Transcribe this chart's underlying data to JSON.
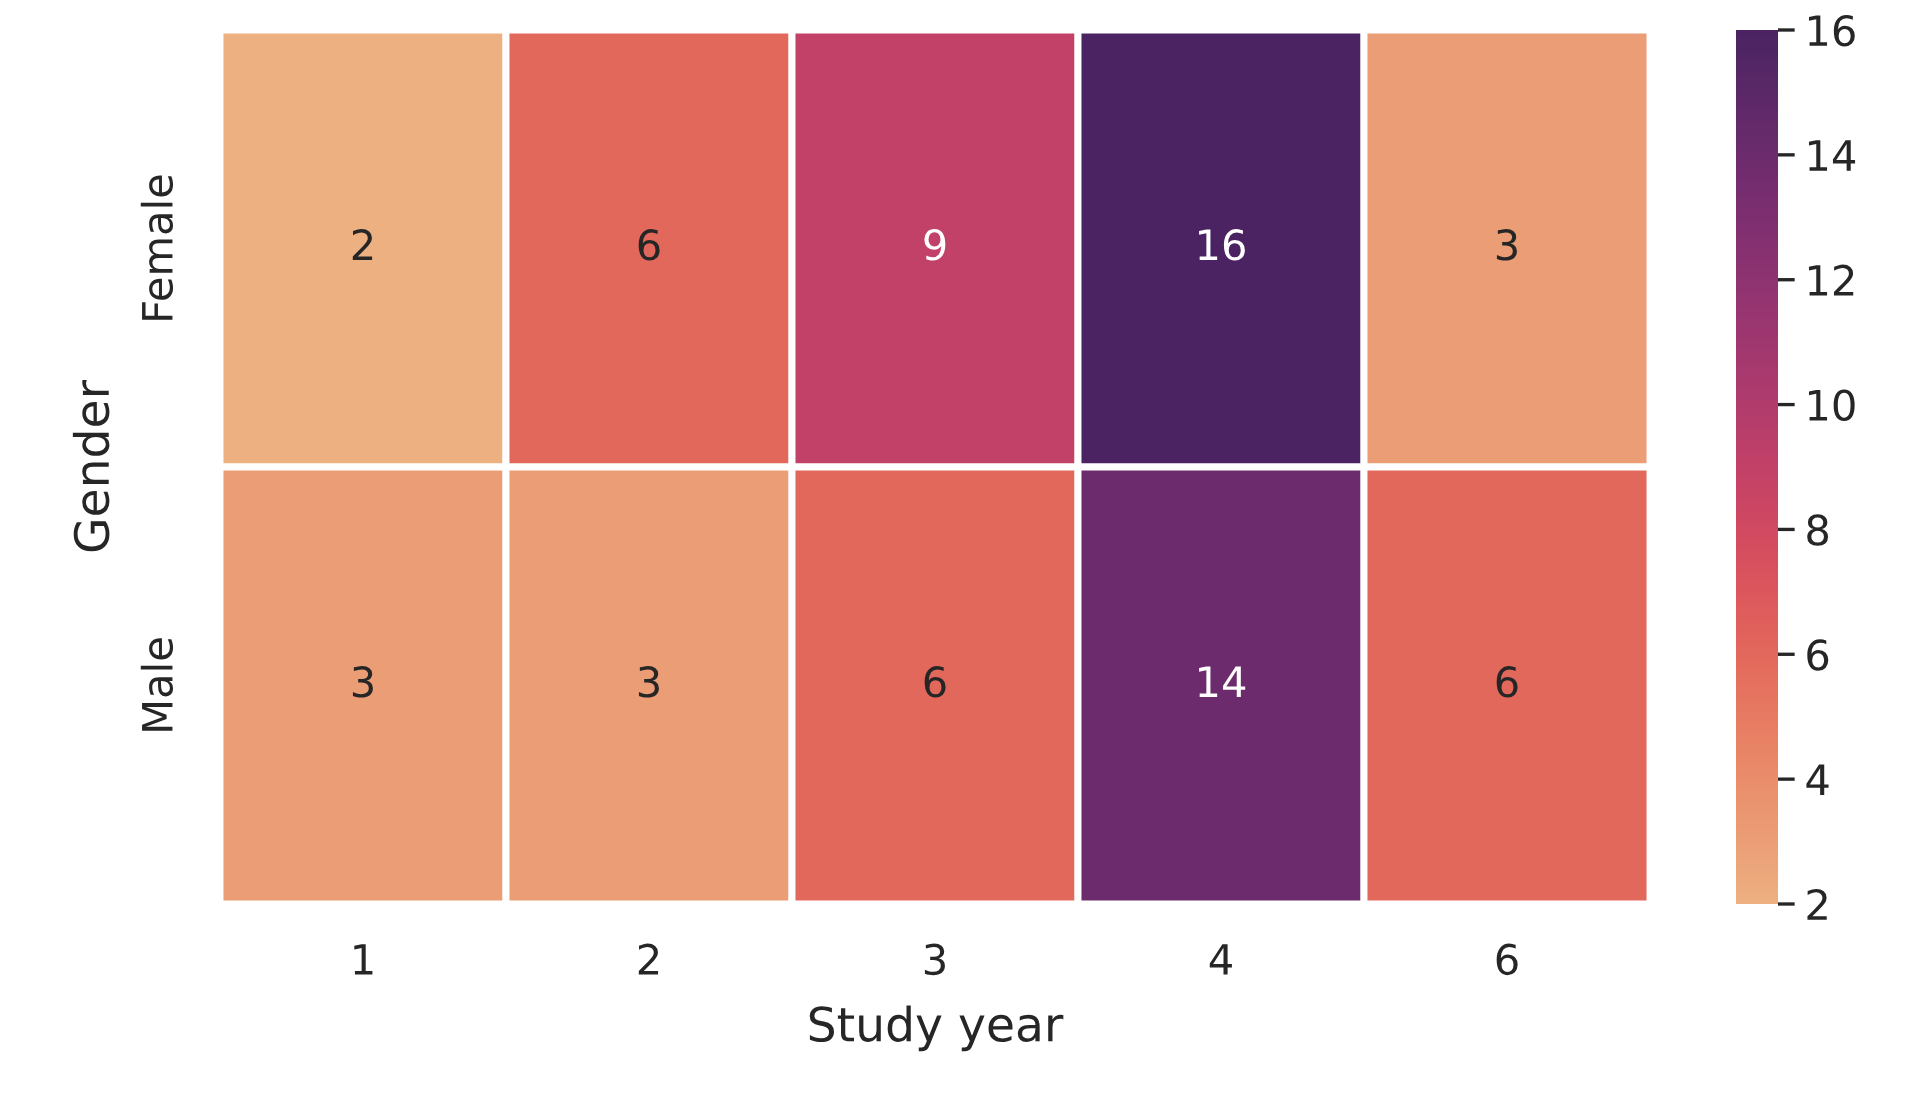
{
  "chart_data": {
    "type": "heatmap",
    "xlabel": "Study year",
    "ylabel": "Gender",
    "categories": [
      "1",
      "2",
      "3",
      "4",
      "6"
    ],
    "y_categories": [
      "Female",
      "Male"
    ],
    "cells": [
      [
        2,
        6,
        9,
        16,
        3
      ],
      [
        3,
        3,
        6,
        14,
        6
      ]
    ],
    "data_labels": true,
    "clim": [
      2,
      16
    ],
    "cticks": [
      2,
      4,
      6,
      8,
      10,
      12,
      14,
      16
    ]
  }
}
